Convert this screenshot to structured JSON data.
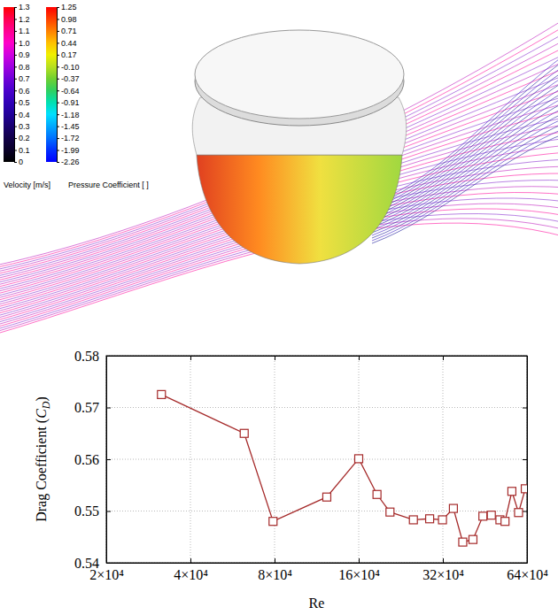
{
  "chart_data": [
    {
      "type": "colorbar",
      "title": "Velocity [m/s]",
      "ylim": [
        0,
        1.3
      ],
      "yticks": [
        0,
        0.1,
        0.2,
        0.3,
        0.4,
        0.5,
        0.6,
        0.7,
        0.8,
        0.9,
        {
          "value": 1,
          "label": "1.0"
        },
        1.1,
        1.2,
        1.3
      ],
      "colors": [
        "#000000",
        "#0a0028",
        "#120048",
        "#1a0070",
        "#22009a",
        "#3000b8",
        "#4a00cc",
        "#7000d8",
        "#a000e0",
        "#d000e0",
        "#ff00c8",
        "#ff0090",
        "#ff0050",
        "#ff0000"
      ]
    },
    {
      "type": "colorbar",
      "title": "Pressure Coefficient [ ]",
      "ylim": [
        -2.26,
        1.25
      ],
      "yticks": [
        -2.26,
        -1.99,
        -1.72,
        -1.45,
        -1.18,
        -0.91,
        -0.64,
        -0.37,
        {
          "value": -0.1,
          "label": "-0.10"
        },
        0.17,
        0.44,
        0.71,
        0.98,
        1.25
      ],
      "colors": [
        "#0000ff",
        "#0030ff",
        "#0070ff",
        "#00a8ff",
        "#00e0ff",
        "#00e0b0",
        "#30d060",
        "#70d030",
        "#b8e020",
        "#f0f000",
        "#ffc000",
        "#ff8000",
        "#ff4000",
        "#ff0000"
      ]
    },
    {
      "type": "line",
      "x_label": "Re",
      "y_label": "Drag Coefficient (CD)",
      "x": [
        31500,
        62300,
        79000,
        123000,
        160000,
        186000,
        207000,
        251000,
        287000,
        319000,
        349000,
        377000,
        410000,
        445000,
        477000,
        512000,
        534000,
        565000,
        597000,
        631000
      ],
      "values": [
        0.5725,
        0.565,
        0.548,
        0.5527,
        0.5601,
        0.5532,
        0.5498,
        0.5483,
        0.5485,
        0.5483,
        0.5505,
        0.544,
        0.5445,
        0.549,
        0.5492,
        0.5483,
        0.548,
        0.5538,
        0.5497,
        0.5543
      ],
      "xlim": [
        20000,
        640000
      ],
      "xticks": [
        {
          "value": 20000,
          "label": "2×10⁴"
        },
        {
          "value": 40000,
          "label": "4×10⁴"
        },
        {
          "value": 80000,
          "label": "8×10⁴"
        },
        {
          "value": 160000,
          "label": "16×10⁴"
        },
        {
          "value": 320000,
          "label": "32×10⁴"
        },
        {
          "value": 640000,
          "label": "64×10⁴"
        }
      ],
      "ylim": [
        0.54,
        0.58
      ],
      "yticks": [
        0.54,
        0.55,
        0.56,
        0.57,
        0.58
      ],
      "log": "x",
      "grid": true,
      "color": "#a52a2a",
      "marker": "square",
      "line_style": "solid"
    }
  ]
}
